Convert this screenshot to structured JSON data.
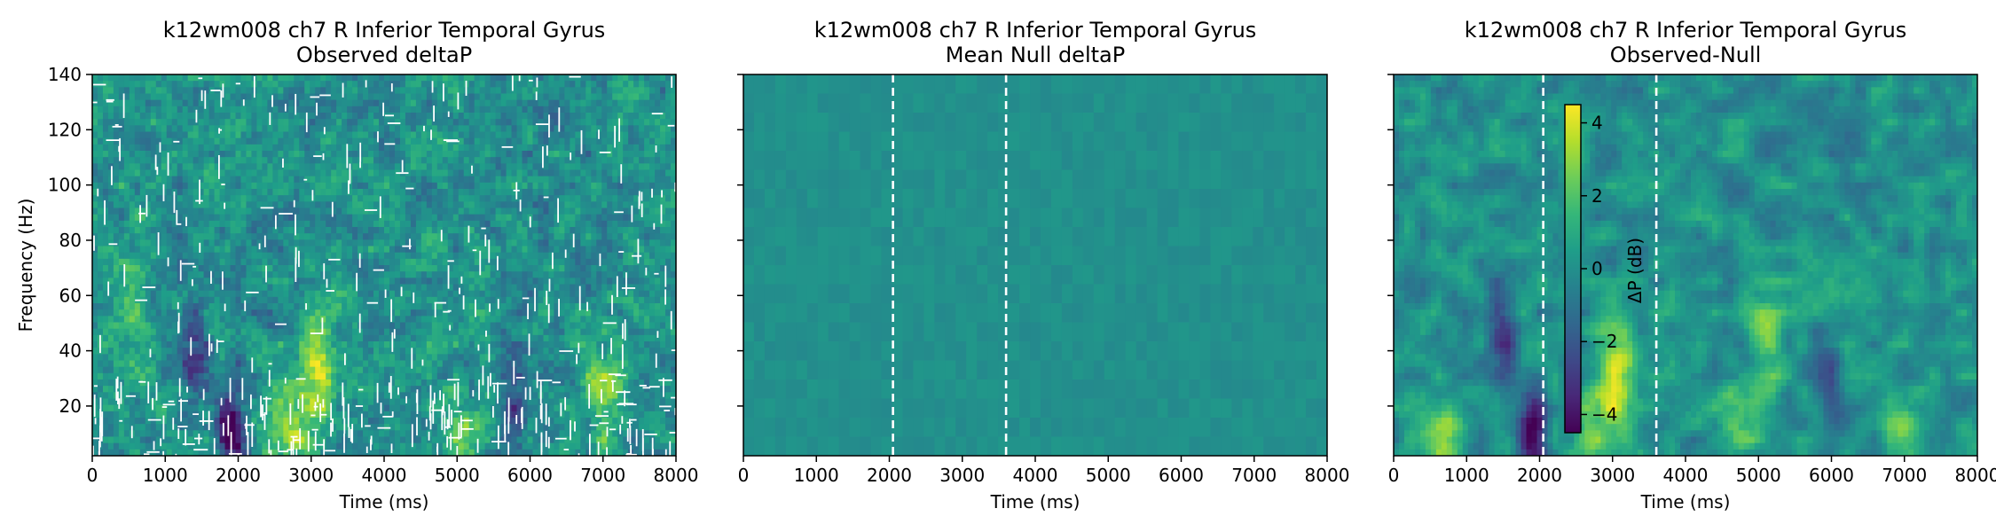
{
  "figure": {
    "colormap": "viridis",
    "frame_color": "#000000",
    "marker_line_color": "#ffffff"
  },
  "chart_data": [
    {
      "type": "heatmap",
      "title": "k12wm008 ch7 R Inferior Temporal Gyrus",
      "subtitle": "Observed deltaP",
      "xlabel": "Time (ms)",
      "ylabel": "Frequency (Hz)",
      "xlim": [
        0,
        8000
      ],
      "ylim": [
        2,
        140
      ],
      "xticks": [
        0,
        1000,
        2000,
        3000,
        4000,
        5000,
        6000,
        7000,
        8000
      ],
      "yticks": [
        20,
        40,
        60,
        80,
        100,
        120,
        140
      ],
      "show_ytick_labels": true,
      "vertical_markers": [],
      "texture": "noisy-masked",
      "value_range": [
        -4.5,
        4.5
      ],
      "hotspots": [
        {
          "time": 3050,
          "freq": 35,
          "value": 4.0
        },
        {
          "time": 2700,
          "freq": 10,
          "value": 2.8
        },
        {
          "time": 5100,
          "freq": 12,
          "value": 2.2
        },
        {
          "time": 7000,
          "freq": 25,
          "value": 2.5
        },
        {
          "time": 500,
          "freq": 60,
          "value": 2.0
        }
      ],
      "coldspots": [
        {
          "time": 1900,
          "freq": 12,
          "value": -4.2
        },
        {
          "time": 1400,
          "freq": 40,
          "value": -2.5
        },
        {
          "time": 5800,
          "freq": 20,
          "value": -2.2
        }
      ]
    },
    {
      "type": "heatmap",
      "title": "k12wm008 ch7 R Inferior Temporal Gyrus",
      "subtitle": "Mean Null deltaP",
      "xlabel": "Time (ms)",
      "ylabel": "",
      "xlim": [
        0,
        8000
      ],
      "ylim": [
        2,
        140
      ],
      "xticks": [
        0,
        1000,
        2000,
        3000,
        4000,
        5000,
        6000,
        7000,
        8000
      ],
      "yticks": [
        20,
        40,
        60,
        80,
        100,
        120,
        140
      ],
      "show_ytick_labels": false,
      "vertical_markers": [
        2050,
        3600
      ],
      "texture": "flat",
      "value_range": [
        -0.3,
        0.3
      ],
      "hotspots": [],
      "coldspots": []
    },
    {
      "type": "heatmap",
      "title": "k12wm008 ch7 R Inferior Temporal Gyrus",
      "subtitle": "Observed-Null",
      "xlabel": "Time (ms)",
      "ylabel": "",
      "xlim": [
        0,
        8000
      ],
      "ylim": [
        2,
        140
      ],
      "xticks": [
        0,
        1000,
        2000,
        3000,
        4000,
        5000,
        6000,
        7000,
        8000
      ],
      "yticks": [
        20,
        40,
        60,
        80,
        100,
        120,
        140
      ],
      "show_ytick_labels": false,
      "vertical_markers": [
        2050,
        3600
      ],
      "texture": "smooth",
      "value_range": [
        -4.5,
        4.5
      ],
      "hotspots": [
        {
          "time": 3050,
          "freq": 30,
          "value": 4.0
        },
        {
          "time": 700,
          "freq": 10,
          "value": 2.8
        },
        {
          "time": 2700,
          "freq": 10,
          "value": 2.6
        },
        {
          "time": 4700,
          "freq": 15,
          "value": 2.4
        },
        {
          "time": 7000,
          "freq": 10,
          "value": 2.4
        },
        {
          "time": 5100,
          "freq": 45,
          "value": 2.0
        }
      ],
      "coldspots": [
        {
          "time": 1900,
          "freq": 12,
          "value": -4.2
        },
        {
          "time": 1500,
          "freq": 45,
          "value": -2.5
        },
        {
          "time": 6000,
          "freq": 25,
          "value": -2.0
        }
      ],
      "colorbar": {
        "label": "ΔP (dB)",
        "range": [
          -4.5,
          4.5
        ],
        "ticks": [
          -4,
          -2,
          0,
          2,
          4
        ]
      }
    }
  ]
}
